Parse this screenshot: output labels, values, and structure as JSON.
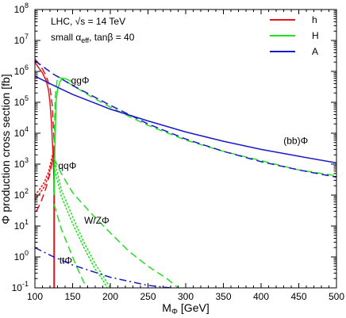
{
  "chart_data": {
    "type": "line",
    "xlabel_main": "M",
    "xlabel_sub": "Φ",
    "xlabel_unit": "[GeV]",
    "ylabel": "Φ production cross section [fb]",
    "xlim": [
      100,
      500
    ],
    "ylim": [
      0.1,
      100000000
    ],
    "yscale": "log",
    "x_ticks": [
      100,
      150,
      200,
      250,
      300,
      350,
      400,
      450,
      500
    ],
    "y_ticks": [
      {
        "value": 0.1,
        "base": "10",
        "exp": "-1"
      },
      {
        "value": 1,
        "base": "10",
        "exp": "0"
      },
      {
        "value": 10,
        "base": "10",
        "exp": "1"
      },
      {
        "value": 100,
        "base": "10",
        "exp": "2"
      },
      {
        "value": 1000,
        "base": "10",
        "exp": "3"
      },
      {
        "value": 10000,
        "base": "10",
        "exp": "4"
      },
      {
        "value": 100000,
        "base": "10",
        "exp": "5"
      },
      {
        "value": 1000000,
        "base": "10",
        "exp": "6"
      },
      {
        "value": 10000000,
        "base": "10",
        "exp": "7"
      },
      {
        "value": 100000000,
        "base": "10",
        "exp": "8"
      }
    ],
    "info": {
      "line1": "LHC, √s = 14 TeV",
      "line2_pre": "small α",
      "line2_sub": "eff",
      "line2_post": ", tanβ = 40"
    },
    "legend": {
      "position": "top-right",
      "entries": [
        {
          "name": "h",
          "color": "#e8141c"
        },
        {
          "name": "H",
          "color": "#22e022"
        },
        {
          "name": "A",
          "color": "#1a1ac8"
        }
      ]
    },
    "annotations": [
      {
        "key": "gg",
        "text": "ggΦ",
        "x": 160,
        "y": 400000
      },
      {
        "key": "bb",
        "text": "(bb)Φ",
        "x": 446,
        "y": 4500
      },
      {
        "key": "qq",
        "text": "qqΦ",
        "x": 143,
        "y": 700
      },
      {
        "key": "wz",
        "text": "W/ZΦ",
        "x": 182,
        "y": 12
      },
      {
        "key": "tt",
        "text": "ttΦ",
        "x": 141,
        "y": 0.6
      }
    ],
    "series": [
      {
        "name": "h",
        "process": "ggΦ",
        "color": "#e8141c",
        "style": "solid",
        "width": 1.5,
        "x": [
          100,
          105,
          110,
          115,
          118,
          120,
          122,
          124,
          125.5
        ],
        "y": [
          2000000,
          1300000,
          900000,
          500000,
          250000,
          100000,
          20000,
          2000,
          250
        ]
      },
      {
        "name": "h",
        "process": "vertical",
        "color": "#e8141c",
        "style": "solid",
        "width": 2,
        "x": [
          125.5,
          125.5
        ],
        "y": [
          4000,
          0.1
        ]
      },
      {
        "name": "h",
        "process": "(bb)Φ",
        "color": "#e8141c",
        "style": "dashed",
        "width": 1.5,
        "x": [
          100,
          105,
          110,
          115,
          120,
          123,
          125.5
        ],
        "y": [
          2500000,
          1800000,
          1200000,
          700000,
          300000,
          80000,
          5000
        ]
      },
      {
        "name": "h",
        "process": "qqΦ",
        "color": "#e8141c",
        "style": "dashed",
        "width": 1.5,
        "x": [
          102,
          108,
          114,
          120,
          125.5
        ],
        "y": [
          30,
          60,
          150,
          500,
          3000
        ]
      },
      {
        "name": "h",
        "process": "W/ZΦ",
        "color": "#e8141c",
        "style": "dotted",
        "width": 1.5,
        "x": [
          100,
          106,
          112,
          118,
          125
        ],
        "y": [
          70,
          110,
          180,
          400,
          2000
        ]
      },
      {
        "name": "h",
        "process": "W/ZΦ",
        "color": "#e8141c",
        "style": "dotted",
        "width": 1.5,
        "x": [
          100,
          106,
          112,
          118,
          125
        ],
        "y": [
          100,
          150,
          250,
          550,
          3000
        ]
      },
      {
        "name": "H",
        "process": "ggΦ",
        "color": "#22e022",
        "style": "solid",
        "width": 1.5,
        "x": [
          125.5,
          126.5,
          128,
          130,
          133,
          136,
          140,
          145,
          150
        ],
        "y": [
          100,
          3000,
          100000,
          250000,
          450000,
          600000,
          580000,
          520000,
          460000
        ]
      },
      {
        "name": "H",
        "process": "(bb)Φ",
        "color": "#22e022",
        "style": "dashed",
        "width": 1.5,
        "x": [
          125.5,
          127,
          130,
          140,
          150,
          175,
          200,
          225,
          250,
          300,
          350,
          400,
          450,
          500
        ],
        "y": [
          5000,
          150000,
          700000,
          500000,
          350000,
          150000,
          70000,
          35000,
          18000,
          6000,
          2600,
          1300,
          650,
          420
        ]
      },
      {
        "name": "H",
        "process": "qqΦ",
        "color": "#22e022",
        "style": "dashed",
        "width": 1.5,
        "x": [
          125.5,
          135,
          150,
          175,
          200,
          225,
          250,
          275,
          290
        ],
        "y": [
          1500,
          500,
          120,
          25,
          6,
          1.5,
          0.5,
          0.2,
          0.1
        ]
      },
      {
        "name": "H",
        "process": "W/ZΦ",
        "color": "#22e022",
        "style": "dotted",
        "width": 1.5,
        "x": [
          125.5,
          135,
          150,
          165,
          180,
          190,
          200
        ],
        "y": [
          1500,
          150,
          20,
          3,
          0.6,
          0.25,
          0.1
        ]
      },
      {
        "name": "H",
        "process": "W/ZΦ",
        "color": "#22e022",
        "style": "dotted",
        "width": 1.5,
        "x": [
          125.5,
          135,
          150,
          165,
          180,
          190,
          196
        ],
        "y": [
          800,
          90,
          12,
          2,
          0.4,
          0.18,
          0.1
        ]
      },
      {
        "name": "H",
        "process": "ttΦ",
        "color": "#22e022",
        "style": "dashed",
        "width": 1.5,
        "x": [
          125.5,
          135,
          145,
          155,
          165,
          170
        ],
        "y": [
          50,
          8,
          2,
          0.5,
          0.15,
          0.1
        ]
      },
      {
        "name": "A",
        "process": "ggΦ",
        "color": "#1a1ac8",
        "style": "solid",
        "width": 1.5,
        "x": [
          100,
          125,
          150,
          200,
          250,
          300,
          350,
          400,
          450,
          500
        ],
        "y": [
          700000,
          350000,
          180000,
          60000,
          25000,
          11000,
          5500,
          3000,
          1800,
          1100
        ]
      },
      {
        "name": "A",
        "process": "(bb)Φ",
        "color": "#1a1ac8",
        "style": "dashed",
        "width": 1.5,
        "x": [
          100,
          125,
          150,
          200,
          250,
          300,
          350,
          400,
          450,
          500
        ],
        "y": [
          2200000,
          800000,
          350000,
          80000,
          20000,
          6500,
          2600,
          1200,
          650,
          380
        ]
      },
      {
        "name": "A",
        "process": "ttΦ",
        "color": "#1a1ac8",
        "style": "dashdot",
        "width": 1.5,
        "x": [
          100,
          125,
          150,
          200,
          250,
          280
        ],
        "y": [
          2,
          1,
          0.55,
          0.22,
          0.12,
          0.1
        ]
      }
    ]
  }
}
